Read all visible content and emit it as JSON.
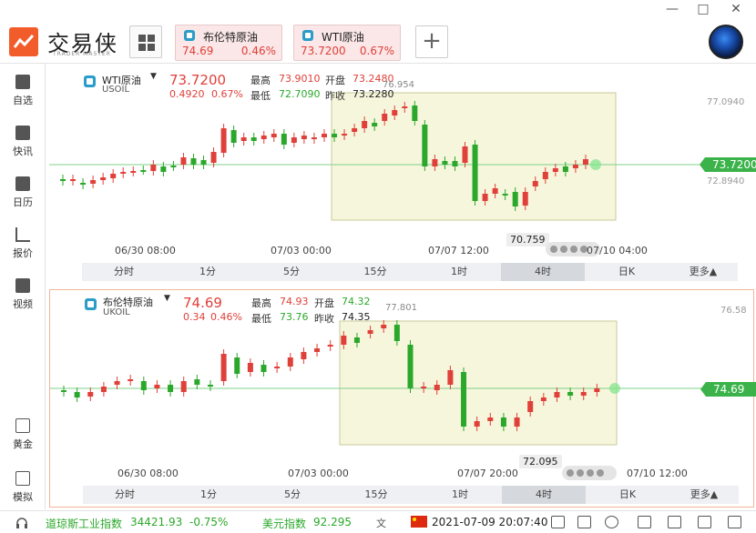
{
  "app": {
    "logo_text": "交易侠",
    "logo_sub": "TRADER MASTER"
  },
  "tabs": [
    {
      "name": "布伦特原油",
      "price": "74.69",
      "pct": "0.46%"
    },
    {
      "name": "WTI原油",
      "price": "73.7200",
      "pct": "0.67%"
    }
  ],
  "window_controls": {
    "minimize": "—",
    "maximize": "□",
    "close": "✕"
  },
  "sidebar": [
    {
      "label": "自选",
      "icon": "bookmark-add-icon"
    },
    {
      "label": "快讯",
      "icon": "news-list-icon"
    },
    {
      "label": "日历",
      "icon": "calendar-icon"
    },
    {
      "label": "报价",
      "icon": "chart-line-icon"
    },
    {
      "label": "视频",
      "icon": "video-play-icon"
    },
    {
      "label": "黄金",
      "icon": "gold-icon"
    },
    {
      "label": "模拟",
      "icon": "wallet-icon"
    }
  ],
  "timeframes": [
    "分时",
    "1分",
    "5分",
    "15分",
    "1时",
    "4时",
    "日K",
    "更多▲"
  ],
  "active_timeframe": "4时",
  "charts": [
    {
      "symbol_name": "WTI原油",
      "symbol_code": "USOIL",
      "price": "73.7200",
      "change": "0.4920",
      "change_pct": "0.67%",
      "labels": {
        "high": "最高",
        "low": "最低",
        "open": "开盘",
        "prev": "昨收"
      },
      "high": "73.9010",
      "low": "72.7090",
      "open": "73.2480",
      "prev_close": "73.2280",
      "y_ticks": [
        "77.0940",
        "72.8940"
      ],
      "last_tag": "73.7200",
      "range_high_label": "76.954",
      "range_low_label": "70.759",
      "x_ticks": [
        "06/30 08:00",
        "07/03 00:00",
        "07/07 12:00",
        "07/10 04:00"
      ]
    },
    {
      "symbol_name": "布伦特原油",
      "symbol_code": "UKOIL",
      "price": "74.69",
      "change": "0.34",
      "change_pct": "0.46%",
      "labels": {
        "high": "最高",
        "low": "最低",
        "open": "开盘",
        "prev": "昨收"
      },
      "high": "74.93",
      "low": "73.76",
      "open": "74.32",
      "prev_close": "74.35",
      "y_ticks": [
        "76.58"
      ],
      "last_tag": "74.69",
      "range_high_label": "77.801",
      "range_low_label": "72.095",
      "x_ticks": [
        "06/30 08:00",
        "07/03 00:00",
        "07/07 20:00",
        "07/10 12:00"
      ]
    }
  ],
  "statusbar": {
    "index1_name": "道琼斯工业指数",
    "index1_value": "34421.93",
    "index1_change": "-0.75%",
    "index2_name": "美元指数",
    "index2_value": "92.295",
    "datetime": "2021-07-09 20:07:40"
  },
  "colors": {
    "up": "#e0403a",
    "down": "#2ba82b",
    "accent": "#f25c2a",
    "last_tag": "#3bb34a"
  }
}
